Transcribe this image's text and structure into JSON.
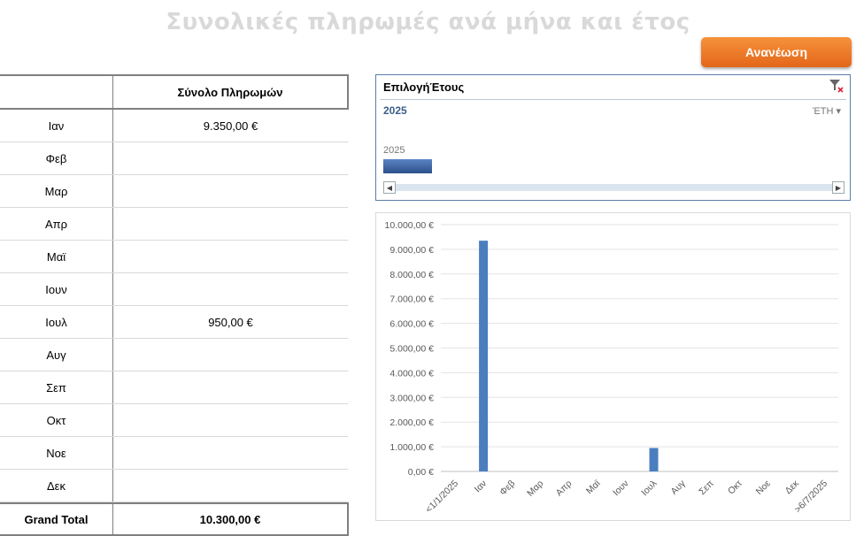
{
  "page": {
    "title": "Συνολικές πληρωμές ανά μήνα και έτος",
    "refresh_label": "Ανανέωση"
  },
  "table": {
    "header": {
      "col1": "",
      "col2": "Σύνολο Πληρωμών"
    },
    "rows": [
      {
        "month": "Ιαν",
        "value": "9.350,00 €"
      },
      {
        "month": "Φεβ",
        "value": ""
      },
      {
        "month": "Μαρ",
        "value": ""
      },
      {
        "month": "Απρ",
        "value": ""
      },
      {
        "month": "Μαϊ",
        "value": ""
      },
      {
        "month": "Ιουν",
        "value": ""
      },
      {
        "month": "Ιουλ",
        "value": "950,00 €"
      },
      {
        "month": "Αυγ",
        "value": ""
      },
      {
        "month": "Σεπ",
        "value": ""
      },
      {
        "month": "Οκτ",
        "value": ""
      },
      {
        "month": "Νοε",
        "value": ""
      },
      {
        "month": "Δεκ",
        "value": ""
      }
    ],
    "total": {
      "label": "Grand Total",
      "value": "10.300,00 €"
    }
  },
  "slicer": {
    "title": "ΕπιλογήΈτους",
    "selected": "2025",
    "level": "ΈΤΗ",
    "timeline_year": "2025",
    "icons": {
      "filter": "clear-filter-icon",
      "left": "scroll-left-icon",
      "right": "scroll-right-icon"
    }
  },
  "chart_data": {
    "type": "bar",
    "categories": [
      "<1/1/2025",
      "Ιαν",
      "Φεβ",
      "Μαρ",
      "Απρ",
      "Μαϊ",
      "Ιουν",
      "Ιουλ",
      "Αυγ",
      "Σεπ",
      "Οκτ",
      "Νοε",
      "Δεκ",
      ">6/7/2025"
    ],
    "values": [
      0,
      9350,
      0,
      0,
      0,
      0,
      0,
      950,
      0,
      0,
      0,
      0,
      0,
      0
    ],
    "yticks": [
      "0,00 €",
      "1.000,00 €",
      "2.000,00 €",
      "3.000,00 €",
      "4.000,00 €",
      "5.000,00 €",
      "6.000,00 €",
      "7.000,00 €",
      "8.000,00 €",
      "9.000,00 €",
      "10.000,00 €"
    ],
    "ylim": [
      0,
      10000
    ],
    "grid": true,
    "bar_color": "#4a7ebf"
  }
}
